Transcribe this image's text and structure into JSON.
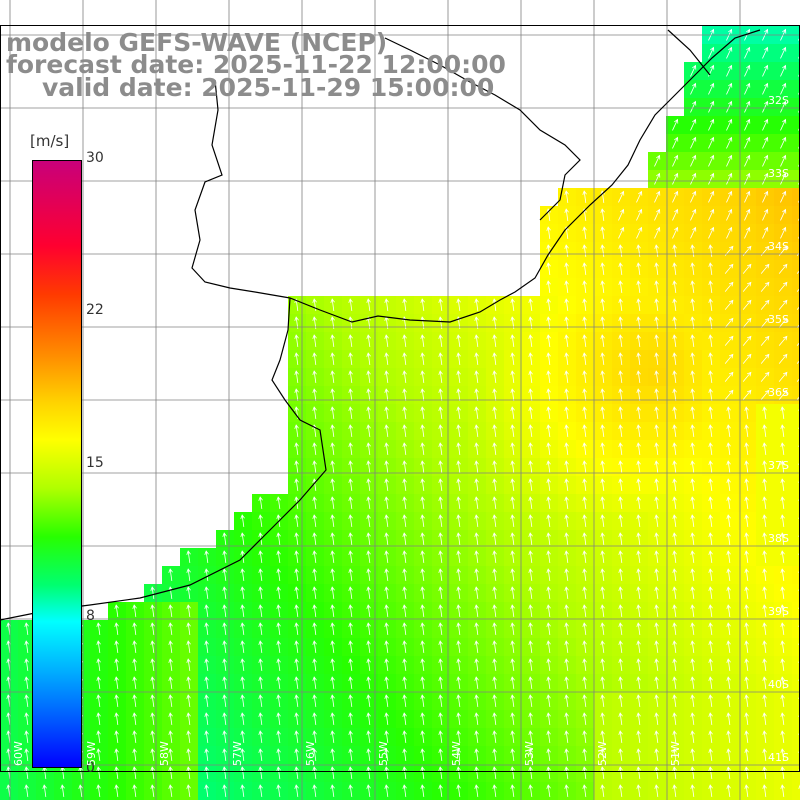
{
  "title": {
    "line1": "modelo GEFS-WAVE (NCEP)",
    "line2": "forecast date: 2025-11-22 12:00:00",
    "line3": "valid date: 2025-11-29 15:00:00"
  },
  "colorbar": {
    "unit": "[m/s]",
    "ticks": [
      "30",
      "22",
      "15",
      "8",
      "0"
    ],
    "tick_values": [
      30,
      22,
      15,
      8,
      0
    ],
    "range": [
      0,
      30
    ],
    "colors": [
      "#0000ff",
      "#00b0ff",
      "#00ffff",
      "#00ff70",
      "#28ff00",
      "#b0ff00",
      "#ffff00",
      "#ffd400",
      "#ff8c00",
      "#ff3a00",
      "#ff0030",
      "#c8007a"
    ]
  },
  "map": {
    "lat_labels": [
      "32S",
      "33S",
      "34S",
      "35S",
      "36S",
      "37S",
      "38S",
      "39S",
      "40S",
      "41S"
    ],
    "lon_labels": [
      "60W",
      "59W",
      "58W",
      "57W",
      "56W",
      "55W",
      "54W",
      "53W",
      "52W",
      "51W"
    ],
    "field": "wind speed with direction arrows",
    "background_color": "#ffffff",
    "grid_color": "#808080"
  }
}
